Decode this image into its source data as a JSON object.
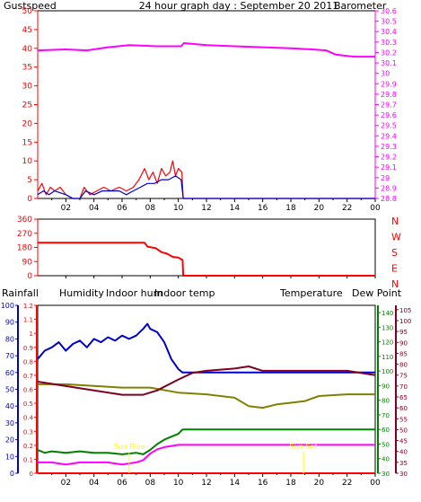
{
  "colors": {
    "background": "#ffffff",
    "gust": "#ff0000",
    "wind": "#0000cc",
    "barometer": "#ff00ff",
    "direction": "#ff0000",
    "rainfall": "#ff0000",
    "humidity": "#0000cc",
    "indoor_hum": "#808000",
    "indoor_temp": "#800020",
    "temperature": "#008000",
    "dew_point": "#ff00ff",
    "sun_label": "#ffff00",
    "frame": "#000000"
  },
  "header": {
    "title": "24 hour graph day : September 20 2011"
  },
  "chart_data": [
    {
      "id": "wind_baro",
      "type": "line",
      "legend": {
        "left": "Gustspeed",
        "right": "Barometer"
      },
      "x_ticks": [
        "02",
        "04",
        "06",
        "08",
        "10",
        "12",
        "14",
        "16",
        "18",
        "20",
        "22",
        "00"
      ],
      "x_range_hours": [
        0,
        24
      ],
      "y_left_ticks": [
        "0",
        "5",
        "10",
        "15",
        "20",
        "25",
        "30",
        "35",
        "40",
        "45",
        "50"
      ],
      "y_left_range": [
        0,
        50
      ],
      "y_right_ticks": [
        "28.8",
        "28.9",
        "29",
        "29.1",
        "29.2",
        "29.3",
        "29.4",
        "29.5",
        "29.6",
        "29.7",
        "29.8",
        "29.9",
        "30",
        "30.1",
        "30.2",
        "30.3",
        "30.4",
        "30.5",
        "30.6"
      ],
      "y_right_range": [
        28.8,
        30.6
      ],
      "series": [
        {
          "key": "gust",
          "axis": "left",
          "points": [
            [
              0,
              2
            ],
            [
              0.3,
              4
            ],
            [
              0.6,
              1
            ],
            [
              0.9,
              3
            ],
            [
              1.2,
              2
            ],
            [
              1.6,
              3
            ],
            [
              2,
              1
            ],
            [
              2.5,
              0
            ],
            [
              3,
              0
            ],
            [
              3.3,
              3
            ],
            [
              3.7,
              1
            ],
            [
              4.2,
              2
            ],
            [
              4.7,
              3
            ],
            [
              5.2,
              2
            ],
            [
              5.8,
              3
            ],
            [
              6.3,
              2
            ],
            [
              6.8,
              3
            ],
            [
              7.2,
              5
            ],
            [
              7.6,
              8
            ],
            [
              7.9,
              5
            ],
            [
              8.2,
              7
            ],
            [
              8.5,
              4
            ],
            [
              8.8,
              8
            ],
            [
              9.1,
              6
            ],
            [
              9.4,
              7
            ],
            [
              9.6,
              10
            ],
            [
              9.8,
              6
            ],
            [
              10,
              8
            ],
            [
              10.25,
              7
            ],
            [
              10.35,
              0
            ],
            [
              24,
              0
            ]
          ]
        },
        {
          "key": "wind",
          "axis": "left",
          "points": [
            [
              0,
              1
            ],
            [
              0.4,
              2
            ],
            [
              0.8,
              1
            ],
            [
              1.2,
              2
            ],
            [
              2,
              1
            ],
            [
              2.5,
              0
            ],
            [
              3,
              0
            ],
            [
              3.4,
              2
            ],
            [
              4,
              1
            ],
            [
              4.6,
              2
            ],
            [
              5.2,
              2
            ],
            [
              5.8,
              2
            ],
            [
              6.3,
              1
            ],
            [
              6.8,
              2
            ],
            [
              7.3,
              3
            ],
            [
              7.8,
              4
            ],
            [
              8.3,
              4
            ],
            [
              8.8,
              5
            ],
            [
              9.3,
              5
            ],
            [
              9.8,
              6
            ],
            [
              10.2,
              5
            ],
            [
              10.35,
              0
            ],
            [
              24,
              0
            ]
          ]
        },
        {
          "key": "barometer",
          "axis": "right",
          "points": [
            [
              0,
              30.22
            ],
            [
              2,
              30.23
            ],
            [
              3.5,
              30.22
            ],
            [
              5,
              30.25
            ],
            [
              6.5,
              30.27
            ],
            [
              8.5,
              30.26
            ],
            [
              10.2,
              30.26
            ],
            [
              10.4,
              30.29
            ],
            [
              12,
              30.27
            ],
            [
              14,
              30.26
            ],
            [
              16,
              30.25
            ],
            [
              18,
              30.24
            ],
            [
              19.5,
              30.23
            ],
            [
              20.5,
              30.22
            ],
            [
              21.2,
              30.18
            ],
            [
              22.5,
              30.16
            ],
            [
              24,
              30.16
            ]
          ]
        }
      ]
    },
    {
      "id": "direction",
      "type": "line",
      "x_range_hours": [
        0,
        24
      ],
      "y_left_ticks": [
        "0",
        "90",
        "180",
        "270",
        "360"
      ],
      "y_left_range": [
        0,
        360
      ],
      "y_right_labels": [
        "N",
        "W",
        "S",
        "E",
        "N"
      ],
      "series": [
        {
          "key": "direction",
          "axis": "left",
          "points": [
            [
              0,
              210
            ],
            [
              7.6,
              210
            ],
            [
              7.8,
              185
            ],
            [
              8.4,
              175
            ],
            [
              8.8,
              150
            ],
            [
              9.2,
              140
            ],
            [
              9.6,
              120
            ],
            [
              10,
              115
            ],
            [
              10.3,
              100
            ],
            [
              10.35,
              0
            ],
            [
              24,
              0
            ]
          ]
        }
      ]
    },
    {
      "id": "temp_hum",
      "type": "line",
      "legend": [
        "Rainfall",
        "Humidity",
        "Indoor hum",
        "Indoor temp",
        "Temperature",
        "Dew Point"
      ],
      "annotations": [
        {
          "text": "Sun Rise",
          "x": 6.5
        },
        {
          "text": "Sun Set",
          "x": 18.9
        }
      ],
      "x_ticks": [
        "02",
        "04",
        "06",
        "08",
        "10",
        "12",
        "14",
        "16",
        "18",
        "20",
        "22",
        "00"
      ],
      "x_range_hours": [
        0,
        24
      ],
      "axes": {
        "humidity": {
          "ticks": [
            "0",
            "10",
            "20",
            "30",
            "40",
            "50",
            "60",
            "70",
            "80",
            "90",
            "100"
          ],
          "range": [
            0,
            100
          ]
        },
        "rainfall": {
          "ticks": [
            "0",
            "0.1",
            "0.2",
            "0.3",
            "0.4",
            "0.5",
            "0.6",
            "0.7",
            "0.8",
            "0.9",
            "1",
            "1.1",
            "1.2"
          ],
          "range": [
            0,
            1.2
          ]
        },
        "temperature": {
          "ticks": [
            "30",
            "40",
            "50",
            "60",
            "70",
            "80",
            "90",
            "100",
            "110",
            "120",
            "130",
            "140"
          ],
          "range": [
            30,
            145
          ]
        },
        "dew_point": {
          "ticks": [
            "30",
            "35",
            "40",
            "45",
            "50",
            "55",
            "60",
            "65",
            "70",
            "75",
            "80",
            "85",
            "90",
            "95",
            "100",
            "105"
          ],
          "range": [
            30,
            107
          ]
        }
      },
      "series": [
        {
          "key": "humidity",
          "axis": "humidity",
          "points": [
            [
              0,
              68
            ],
            [
              0.5,
              73
            ],
            [
              1,
              75
            ],
            [
              1.5,
              78
            ],
            [
              2,
              73
            ],
            [
              2.5,
              77
            ],
            [
              3,
              79
            ],
            [
              3.5,
              75
            ],
            [
              4,
              80
            ],
            [
              4.5,
              78
            ],
            [
              5,
              81
            ],
            [
              5.5,
              79
            ],
            [
              6,
              82
            ],
            [
              6.5,
              80
            ],
            [
              7,
              82
            ],
            [
              7.5,
              86
            ],
            [
              7.8,
              89
            ],
            [
              8,
              86
            ],
            [
              8.5,
              84
            ],
            [
              9,
              78
            ],
            [
              9.5,
              68
            ],
            [
              10,
              62
            ],
            [
              10.3,
              60
            ],
            [
              24,
              60
            ]
          ]
        },
        {
          "key": "indoor_hum",
          "axis": "humidity",
          "points": [
            [
              0,
              53
            ],
            [
              2,
              53
            ],
            [
              4,
              52
            ],
            [
              6,
              51
            ],
            [
              8,
              51
            ],
            [
              10,
              48
            ],
            [
              12,
              47
            ],
            [
              14,
              45
            ],
            [
              15,
              40
            ],
            [
              16,
              39
            ],
            [
              17,
              41
            ],
            [
              18,
              42
            ],
            [
              19,
              43
            ],
            [
              20,
              46
            ],
            [
              22,
              47
            ],
            [
              24,
              47
            ]
          ]
        },
        {
          "key": "indoor_temp",
          "axis": "dew_point",
          "points": [
            [
              0,
              72
            ],
            [
              2,
              70
            ],
            [
              4,
              68
            ],
            [
              6,
              66
            ],
            [
              7.5,
              66
            ],
            [
              8.5,
              68
            ],
            [
              10,
              73
            ],
            [
              11,
              76
            ],
            [
              12,
              77
            ],
            [
              14,
              78
            ],
            [
              15,
              79
            ],
            [
              16,
              77
            ],
            [
              18,
              77
            ],
            [
              20,
              77
            ],
            [
              22,
              77
            ],
            [
              24,
              75
            ]
          ]
        },
        {
          "key": "temperature",
          "axis": "temperature",
          "points": [
            [
              0,
              46
            ],
            [
              0.5,
              44
            ],
            [
              1,
              45
            ],
            [
              2,
              44
            ],
            [
              3,
              45
            ],
            [
              4,
              44
            ],
            [
              5,
              44
            ],
            [
              6,
              43
            ],
            [
              7,
              44
            ],
            [
              7.5,
              43
            ],
            [
              8,
              46
            ],
            [
              8.5,
              50
            ],
            [
              9,
              53
            ],
            [
              9.5,
              55
            ],
            [
              10,
              57
            ],
            [
              10.3,
              60
            ],
            [
              24,
              60
            ]
          ]
        },
        {
          "key": "dew_point",
          "axis": "dew_point",
          "points": [
            [
              0,
              35
            ],
            [
              1,
              35
            ],
            [
              2,
              34
            ],
            [
              3,
              35
            ],
            [
              4,
              35
            ],
            [
              5,
              35
            ],
            [
              6,
              34
            ],
            [
              7,
              35
            ],
            [
              7.5,
              36
            ],
            [
              8,
              39
            ],
            [
              8.5,
              41
            ],
            [
              9,
              42
            ],
            [
              10,
              43
            ],
            [
              24,
              43
            ]
          ]
        },
        {
          "key": "rainfall",
          "axis": "rainfall",
          "points": [
            [
              0,
              0
            ],
            [
              24,
              0
            ]
          ]
        }
      ]
    }
  ]
}
